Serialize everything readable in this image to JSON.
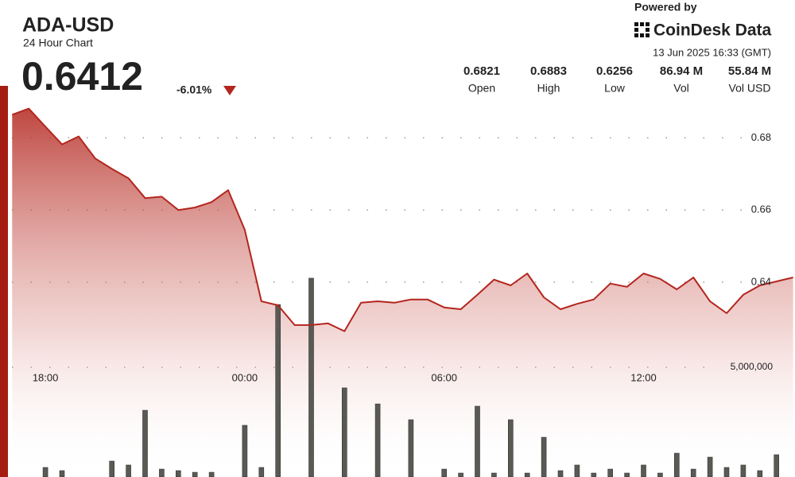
{
  "header": {
    "title": "ADA-USD",
    "subtitle": "24 Hour Chart",
    "price": "0.6412",
    "change": "-6.01%",
    "powered_by": "Powered by",
    "brand": "CoinDesk Data",
    "timestamp": "13 Jun 2025 16:33 (GMT)"
  },
  "stats": [
    {
      "value": "0.6821",
      "label": "Open"
    },
    {
      "value": "0.6883",
      "label": "High"
    },
    {
      "value": "0.6256",
      "label": "Low"
    },
    {
      "value": "86.94 M",
      "label": "Vol"
    },
    {
      "value": "55.84 M",
      "label": "Vol USD"
    }
  ],
  "chart_data": {
    "type": "line",
    "categories": [
      null,
      null,
      "18:00",
      null,
      null,
      null,
      null,
      null,
      null,
      null,
      null,
      null,
      null,
      null,
      "00:00",
      null,
      null,
      null,
      null,
      null,
      null,
      null,
      null,
      null,
      null,
      null,
      "06:00",
      null,
      null,
      null,
      null,
      null,
      null,
      null,
      null,
      null,
      null,
      null,
      "12:00",
      null,
      null,
      null,
      null,
      null,
      null,
      null,
      null,
      null
    ],
    "series": [
      {
        "color": "#b3261e",
        "values": [
          0.6864,
          0.6881,
          0.6831,
          0.6782,
          0.6804,
          0.6743,
          0.6714,
          0.6688,
          0.6633,
          0.6637,
          0.66,
          0.6607,
          0.6622,
          0.6655,
          0.6545,
          0.6347,
          0.6336,
          0.6281,
          0.6281,
          0.6286,
          0.6264,
          0.6343,
          0.6347,
          0.6343,
          0.6352,
          0.6352,
          0.633,
          0.6325,
          0.6365,
          0.6407,
          0.6391,
          0.6424,
          0.6358,
          0.6325,
          0.634,
          0.6352,
          0.6396,
          0.6387,
          0.6424,
          0.6409,
          0.638,
          0.6413,
          0.6347,
          0.6314,
          0.6365,
          0.6391,
          0.6402,
          0.6413
        ]
      },
      {
        "color": "#5a5a55",
        "axis": "y2",
        "type": "bar",
        "values": [
          0,
          0,
          435000,
          290000,
          0,
          0,
          725000,
          545000,
          3040000,
          360000,
          290000,
          215000,
          215000,
          0,
          2355000,
          435000,
          7860000,
          0,
          9060000,
          0,
          4060000,
          0,
          3330000,
          0,
          2610000,
          0,
          360000,
          180000,
          3225000,
          180000,
          2610000,
          180000,
          1810000,
          290000,
          545000,
          180000,
          360000,
          180000,
          545000,
          180000,
          1085000,
          360000,
          905000,
          435000,
          545000,
          290000,
          1015000,
          0
        ]
      }
    ],
    "ylim": [
      0.586,
      0.69
    ],
    "yticks": [
      0.64,
      0.66,
      0.68
    ],
    "y2lim": [
      0,
      17100000
    ],
    "y2ticks": [
      {
        "value": 5000000,
        "label": "5,000,000"
      }
    ],
    "grid": true
  }
}
